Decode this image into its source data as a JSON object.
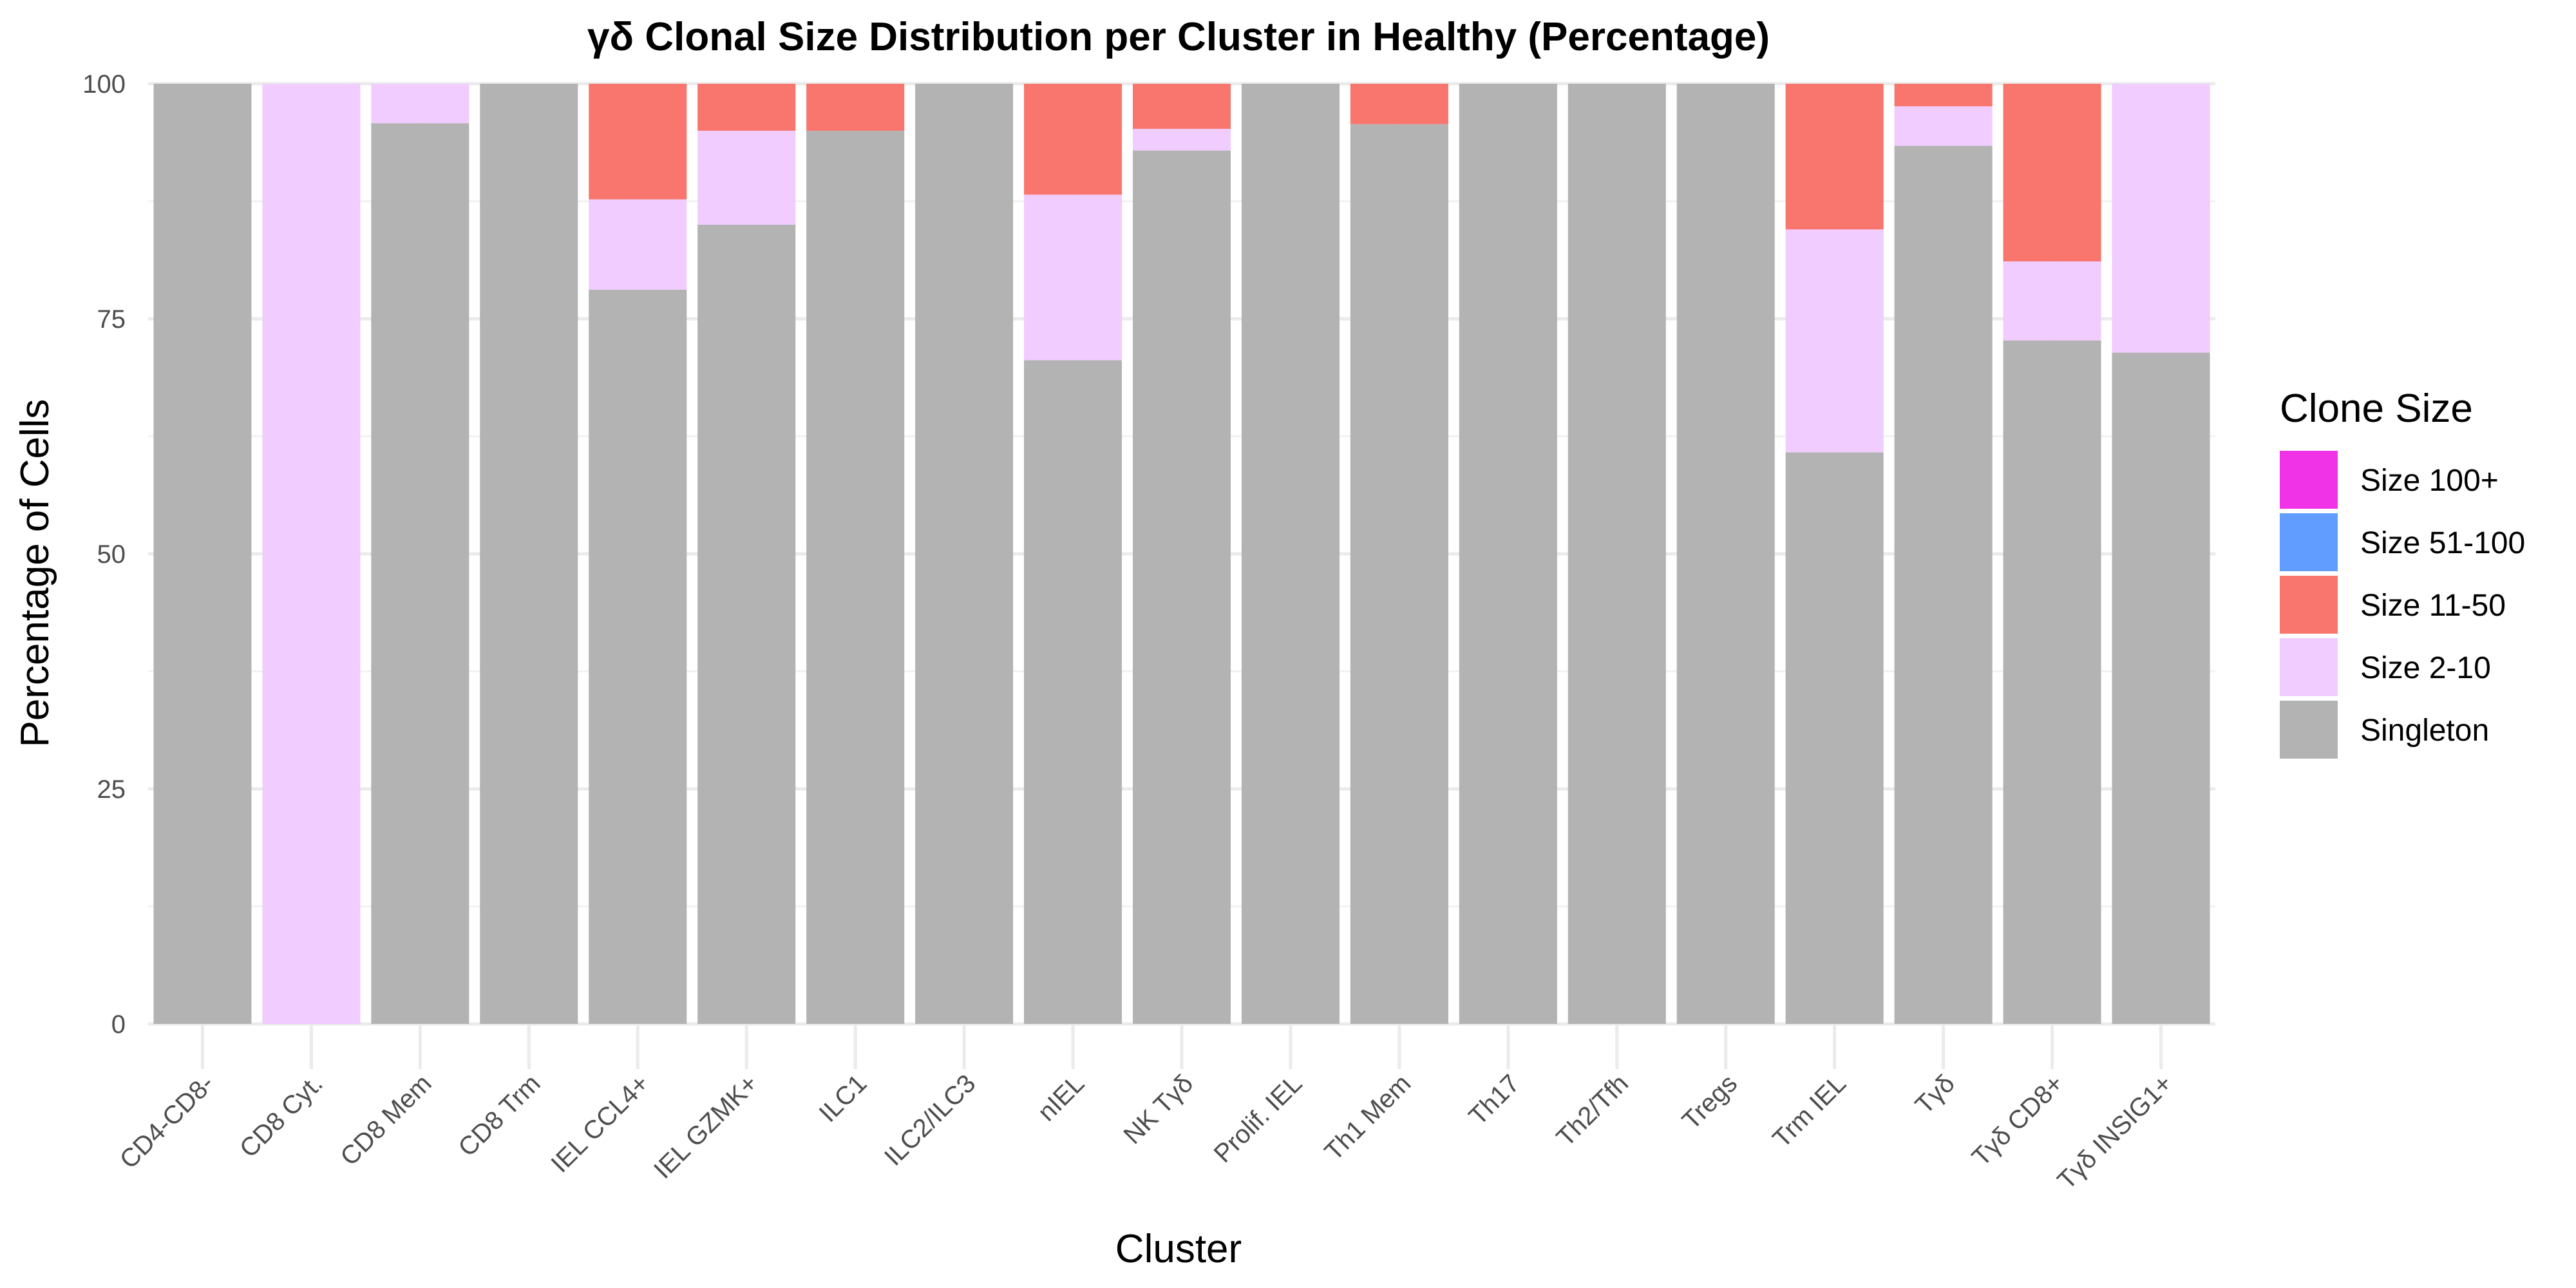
{
  "chart_data": {
    "type": "bar",
    "stacked": true,
    "title": "γδ Clonal Size Distribution per Cluster in Healthy (Percentage)",
    "xlabel": "Cluster",
    "ylabel": "Percentage of Cells",
    "ylim": [
      0,
      100
    ],
    "yticks": [
      0,
      25,
      50,
      75,
      100
    ],
    "grid": true,
    "legend": {
      "title": "Clone Size",
      "position": "right"
    },
    "categories": [
      "CD4-CD8-",
      "CD8 Cyt.",
      "CD8 Mem",
      "CD8 Trm",
      "IEL CCL4+",
      "IEL GZMK+",
      "ILC1",
      "ILC2/ILC3",
      "nIEL",
      "NK Tγδ",
      "Prolif. IEL",
      "Th1 Mem",
      "Th17",
      "Th2/Tfh",
      "Tregs",
      "Trm IEL",
      "Tγδ",
      "Tγδ CD8+",
      "Tγδ INSIG1+"
    ],
    "series": [
      {
        "name": "Singleton",
        "color": "#b3b3b3",
        "values": [
          100,
          0,
          95.8,
          100,
          78.1,
          85.0,
          95.0,
          100,
          70.6,
          92.9,
          100,
          95.7,
          100,
          100,
          100,
          60.8,
          93.4,
          72.7,
          71.4
        ]
      },
      {
        "name": "Size 2-10",
        "color": "#f0ccff",
        "values": [
          0,
          100,
          4.2,
          0,
          9.6,
          10.0,
          0,
          0,
          17.6,
          2.3,
          0,
          0,
          0,
          0,
          0,
          23.7,
          4.2,
          8.4,
          28.6
        ]
      },
      {
        "name": "Size 11-50",
        "color": "#f8766d",
        "values": [
          0,
          0,
          0,
          0,
          12.3,
          5.0,
          5.0,
          0,
          11.8,
          4.8,
          0,
          4.3,
          0,
          0,
          0,
          15.5,
          2.4,
          18.9,
          0
        ]
      },
      {
        "name": "Size 51-100",
        "color": "#619cff",
        "values": [
          0,
          0,
          0,
          0,
          0,
          0,
          0,
          0,
          0,
          0,
          0,
          0,
          0,
          0,
          0,
          0,
          0,
          0,
          0
        ]
      },
      {
        "name": "Size 100+",
        "color": "#f033e6",
        "values": [
          0,
          0,
          0,
          0,
          0,
          0,
          0,
          0,
          0,
          0,
          0,
          0,
          0,
          0,
          0,
          0,
          0,
          0,
          0
        ]
      }
    ],
    "legend_order": [
      "Size 100+",
      "Size 51-100",
      "Size 11-50",
      "Size 2-10",
      "Singleton"
    ]
  }
}
